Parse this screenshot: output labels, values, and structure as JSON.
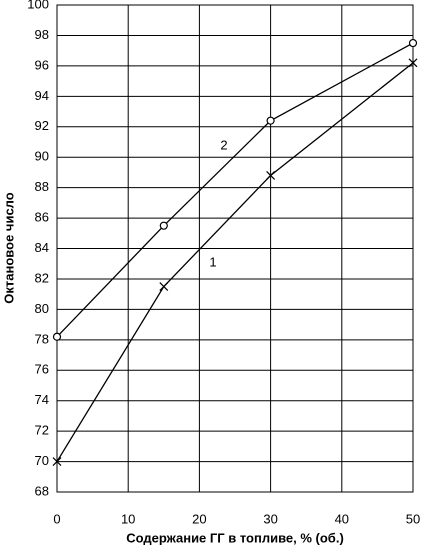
{
  "chart_data": {
    "type": "line",
    "x_label": "Содержание ГГ в топливе, % (об.)",
    "y_label": "Октановое число",
    "x": [
      0,
      15,
      30,
      50
    ],
    "series": [
      {
        "name": "1",
        "color": "#000000",
        "marker": "x",
        "values": [
          70,
          81.5,
          88.8,
          96.2
        ]
      },
      {
        "name": "2",
        "color": "#000000",
        "marker": "o",
        "values": [
          78.2,
          85.5,
          92.4,
          97.5
        ]
      }
    ],
    "xlim": [
      0,
      50
    ],
    "xticks": [
      0,
      10,
      20,
      30,
      40,
      50
    ],
    "ylim": [
      68,
      100
    ],
    "yticks": [
      68,
      70,
      72,
      74,
      76,
      78,
      80,
      82,
      84,
      86,
      88,
      90,
      92,
      94,
      96,
      98,
      100
    ],
    "grid": true
  }
}
